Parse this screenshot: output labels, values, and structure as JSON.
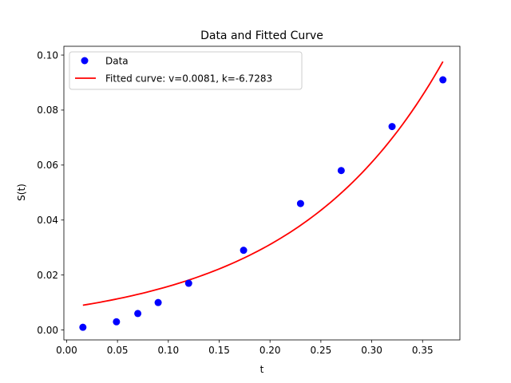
{
  "chart_data": {
    "type": "scatter",
    "title": "Data and Fitted Curve",
    "xlabel": "t",
    "ylabel": "S(t)",
    "xlim": [
      -0.0027,
      0.3867
    ],
    "ylim": [
      -0.0036,
      0.1032
    ],
    "x_ticks": [
      0.0,
      0.05,
      0.1,
      0.15,
      0.2,
      0.25,
      0.3,
      0.35
    ],
    "x_tick_labels": [
      "0.00",
      "0.05",
      "0.10",
      "0.15",
      "0.20",
      "0.25",
      "0.30",
      "0.35"
    ],
    "y_ticks": [
      0.0,
      0.02,
      0.04,
      0.06,
      0.08,
      0.1
    ],
    "y_tick_labels": [
      "0.00",
      "0.02",
      "0.04",
      "0.06",
      "0.08",
      "0.10"
    ],
    "grid": false,
    "legend_position": "top-left",
    "series": [
      {
        "name": "Data",
        "kind": "scatter",
        "color": "#0000ff",
        "x": [
          0.016,
          0.049,
          0.07,
          0.09,
          0.12,
          0.174,
          0.23,
          0.27,
          0.32,
          0.37
        ],
        "y": [
          0.001,
          0.003,
          0.006,
          0.01,
          0.017,
          0.029,
          0.046,
          0.058,
          0.074,
          0.091
        ]
      },
      {
        "name": "Fitted curve: v=0.0081, k=-6.7283",
        "kind": "line",
        "color": "#ff0000",
        "function": "exponential",
        "v": 0.0081,
        "k": -6.7283,
        "x_range": [
          0.016,
          0.37
        ]
      }
    ]
  }
}
